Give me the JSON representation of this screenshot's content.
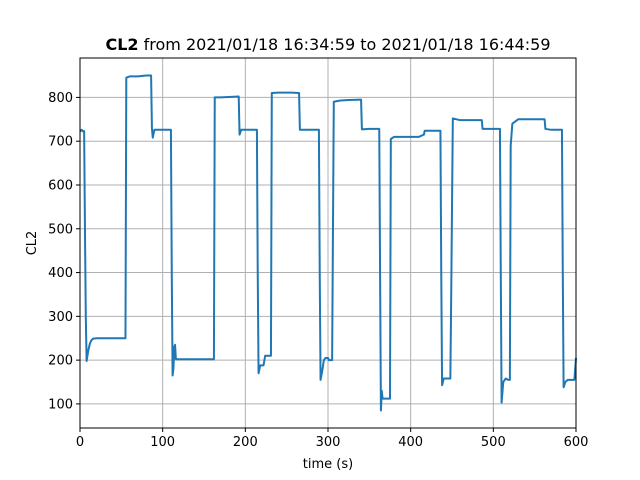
{
  "chart_data": {
    "type": "line",
    "title_bold": "CL2",
    "title_rest": " from 2021/01/18 16:34:59 to 2021/01/18 16:44:59",
    "xlabel": "time (s)",
    "ylabel": "CL2",
    "xlim": [
      0,
      600
    ],
    "ylim": [
      45,
      890
    ],
    "grid": true,
    "x_ticks": [
      0,
      100,
      200,
      300,
      400,
      500,
      600
    ],
    "x_tick_labels": [
      "0",
      "100",
      "200",
      "300",
      "400",
      "500",
      "600"
    ],
    "y_ticks": [
      100,
      200,
      300,
      400,
      500,
      600,
      700,
      800
    ],
    "y_tick_labels": [
      "100",
      "200",
      "300",
      "400",
      "500",
      "600",
      "700",
      "800"
    ],
    "series": [
      {
        "color": "#1f77b4",
        "points": [
          [
            0,
            722
          ],
          [
            2,
            726
          ],
          [
            4,
            722
          ],
          [
            5,
            723
          ],
          [
            6,
            500
          ],
          [
            7,
            300
          ],
          [
            8,
            198
          ],
          [
            10,
            222
          ],
          [
            12,
            238
          ],
          [
            14,
            246
          ],
          [
            16,
            249
          ],
          [
            20,
            250
          ],
          [
            30,
            250
          ],
          [
            40,
            250
          ],
          [
            50,
            250
          ],
          [
            55,
            250
          ],
          [
            56,
            845
          ],
          [
            60,
            848
          ],
          [
            70,
            848
          ],
          [
            80,
            850
          ],
          [
            86,
            850
          ],
          [
            87,
            730
          ],
          [
            88,
            708
          ],
          [
            90,
            726
          ],
          [
            96,
            726
          ],
          [
            100,
            726
          ],
          [
            110,
            726
          ],
          [
            111,
            400
          ],
          [
            112,
            165
          ],
          [
            113,
            180
          ],
          [
            114,
            230
          ],
          [
            115,
            235
          ],
          [
            116,
            202
          ],
          [
            125,
            202
          ],
          [
            140,
            202
          ],
          [
            155,
            202
          ],
          [
            162,
            202
          ],
          [
            163,
            800
          ],
          [
            170,
            800
          ],
          [
            180,
            801
          ],
          [
            192,
            802
          ],
          [
            193,
            715
          ],
          [
            195,
            726
          ],
          [
            205,
            726
          ],
          [
            214,
            726
          ],
          [
            215,
            400
          ],
          [
            216,
            170
          ],
          [
            218,
            188
          ],
          [
            222,
            188
          ],
          [
            224,
            210
          ],
          [
            231,
            210
          ],
          [
            232,
            810
          ],
          [
            240,
            811
          ],
          [
            255,
            811
          ],
          [
            265,
            810
          ],
          [
            266,
            726
          ],
          [
            275,
            726
          ],
          [
            289,
            726
          ],
          [
            290,
            400
          ],
          [
            291,
            155
          ],
          [
            293,
            175
          ],
          [
            295,
            200
          ],
          [
            297,
            205
          ],
          [
            300,
            205
          ],
          [
            301,
            200
          ],
          [
            305,
            200
          ],
          [
            307,
            790
          ],
          [
            315,
            793
          ],
          [
            325,
            794
          ],
          [
            340,
            795
          ],
          [
            341,
            727
          ],
          [
            350,
            728
          ],
          [
            362,
            728
          ],
          [
            363,
            400
          ],
          [
            364,
            85
          ],
          [
            365,
            130
          ],
          [
            366,
            112
          ],
          [
            375,
            112
          ],
          [
            376,
            705
          ],
          [
            380,
            710
          ],
          [
            395,
            710
          ],
          [
            410,
            710
          ],
          [
            416,
            715
          ],
          [
            417,
            724
          ],
          [
            425,
            724
          ],
          [
            436,
            724
          ],
          [
            437,
            400
          ],
          [
            438,
            143
          ],
          [
            440,
            158
          ],
          [
            448,
            158
          ],
          [
            449,
            340
          ],
          [
            451,
            752
          ],
          [
            460,
            748
          ],
          [
            475,
            748
          ],
          [
            486,
            748
          ],
          [
            487,
            728
          ],
          [
            495,
            728
          ],
          [
            508,
            728
          ],
          [
            509,
            400
          ],
          [
            510,
            103
          ],
          [
            512,
            150
          ],
          [
            515,
            158
          ],
          [
            518,
            155
          ],
          [
            520,
            155
          ],
          [
            521,
            690
          ],
          [
            523,
            740
          ],
          [
            530,
            750
          ],
          [
            545,
            750
          ],
          [
            562,
            750
          ],
          [
            563,
            728
          ],
          [
            570,
            726
          ],
          [
            580,
            726
          ],
          [
            583,
            726
          ],
          [
            584,
            400
          ],
          [
            585,
            138
          ],
          [
            587,
            150
          ],
          [
            590,
            155
          ],
          [
            598,
            155
          ],
          [
            600,
            205
          ]
        ]
      }
    ]
  }
}
